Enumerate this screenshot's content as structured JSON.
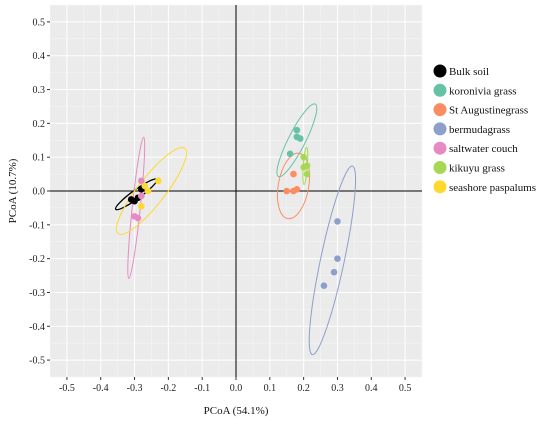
{
  "chart_data": {
    "type": "scatter",
    "xlabel": "PCoA (54.1%)",
    "ylabel": "PCoA (10.7%)",
    "xlim": [
      -0.55,
      0.55
    ],
    "ylim": [
      -0.55,
      0.55
    ],
    "xticks": [
      -0.5,
      -0.4,
      -0.3,
      -0.2,
      -0.1,
      0.0,
      0.1,
      0.2,
      0.3,
      0.4,
      0.5
    ],
    "yticks": [
      -0.5,
      -0.4,
      -0.3,
      -0.2,
      -0.1,
      0.0,
      0.1,
      0.2,
      0.3,
      0.4,
      0.5
    ],
    "xtick_labels": [
      "-0.5",
      "-0.4",
      "-0.3",
      "-0.2",
      "-0.1",
      "0.0",
      "0.1",
      "0.2",
      "0.3",
      "0.4",
      "0.5"
    ],
    "ytick_labels": [
      "-0.5",
      "-0.4",
      "-0.3",
      "-0.2",
      "-0.1",
      "0.0",
      "0.1",
      "0.2",
      "0.3",
      "0.4",
      "0.5"
    ],
    "grid": true,
    "background": "#ebebeb",
    "legend_position": "right",
    "series": [
      {
        "name": "Bulk soil",
        "color": "#000000",
        "points": [
          [
            -0.31,
            -0.025
          ],
          [
            -0.3,
            -0.03
          ],
          [
            -0.28,
            0.005
          ],
          [
            -0.29,
            -0.02
          ]
        ],
        "ellipse": {
          "cx": -0.295,
          "cy": -0.01,
          "rx": 0.075,
          "ry": 0.013,
          "angle": 36
        }
      },
      {
        "name": "koronivia grass",
        "color": "#66c2a5",
        "points": [
          [
            0.16,
            0.11
          ],
          [
            0.18,
            0.18
          ],
          [
            0.18,
            0.16
          ],
          [
            0.19,
            0.155
          ]
        ],
        "ellipse": {
          "cx": 0.18,
          "cy": 0.15,
          "rx": 0.12,
          "ry": 0.025,
          "angle": 63
        }
      },
      {
        "name": "St Augustinegrass",
        "color": "#fc8d62",
        "points": [
          [
            0.15,
            0.0
          ],
          [
            0.17,
            0.0
          ],
          [
            0.18,
            0.005
          ],
          [
            0.17,
            0.05
          ]
        ],
        "ellipse": {
          "cx": 0.17,
          "cy": 0.015,
          "rx": 0.098,
          "ry": 0.045,
          "angle": 80
        }
      },
      {
        "name": "bermudagrass",
        "color": "#8da0cb",
        "points": [
          [
            0.3,
            -0.09
          ],
          [
            0.3,
            -0.2
          ],
          [
            0.29,
            -0.24
          ],
          [
            0.26,
            -0.28
          ]
        ],
        "ellipse": {
          "cx": 0.285,
          "cy": -0.205,
          "rx": 0.285,
          "ry": 0.035,
          "angle": 78
        }
      },
      {
        "name": "saltwater couch",
        "color": "#e78ac3",
        "points": [
          [
            -0.28,
            0.03
          ],
          [
            -0.3,
            -0.075
          ],
          [
            -0.29,
            -0.08
          ],
          [
            -0.28,
            -0.015
          ]
        ],
        "ellipse": {
          "cx": -0.295,
          "cy": -0.05,
          "rx": 0.21,
          "ry": 0.012,
          "angle": 84
        }
      },
      {
        "name": "kikuyu grass",
        "color": "#a6d854",
        "points": [
          [
            0.2,
            0.1
          ],
          [
            0.21,
            0.075
          ],
          [
            0.21,
            0.05
          ],
          [
            0.2,
            0.07
          ]
        ],
        "ellipse": {
          "cx": 0.205,
          "cy": 0.074,
          "rx": 0.055,
          "ry": 0.006,
          "angle": 86
        }
      },
      {
        "name": "seashore paspalums",
        "color": "#ffd92f",
        "points": [
          [
            -0.23,
            0.03
          ],
          [
            -0.27,
            0.015
          ],
          [
            -0.28,
            -0.045
          ],
          [
            -0.26,
            0.0
          ]
        ],
        "ellipse": {
          "cx": -0.25,
          "cy": 0.0,
          "rx": 0.16,
          "ry": 0.04,
          "angle": 52
        }
      }
    ]
  }
}
